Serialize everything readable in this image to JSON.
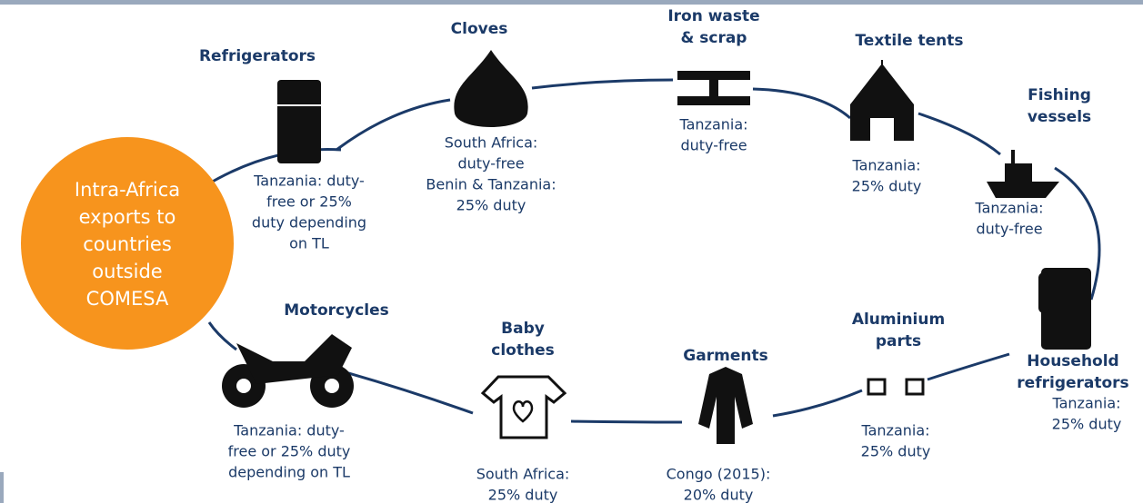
{
  "center": [
    "Intra-Africa",
    "exports to",
    "countries",
    "outside",
    "COMESA"
  ],
  "nodes": [
    {
      "title": [
        "Refrigerators"
      ],
      "note": [
        "Tanzania: duty-",
        "free or 25%",
        "duty depending",
        "on TL"
      ]
    },
    {
      "title": [
        "Cloves"
      ],
      "note": [
        "South Africa:",
        "duty-free",
        "Benin & Tanzania:",
        "25% duty"
      ]
    },
    {
      "title": [
        "Iron waste",
        "& scrap"
      ],
      "note": [
        "Tanzania:",
        "duty-free"
      ]
    },
    {
      "title": [
        "Textile tents"
      ],
      "note": [
        "Tanzania:",
        "25% duty"
      ]
    },
    {
      "title": [
        "Fishing",
        "vessels"
      ],
      "note": [
        "Tanzania:",
        "duty-free"
      ]
    },
    {
      "title": [
        "Household",
        "refrigerators"
      ],
      "note": [
        "Tanzania:",
        "25% duty"
      ]
    },
    {
      "title": [
        "Aluminium",
        "parts"
      ],
      "note": [
        "Tanzania:",
        "25% duty"
      ]
    },
    {
      "title": [
        "Garments"
      ],
      "note": [
        "Congo (2015):",
        "20% duty"
      ]
    },
    {
      "title": [
        "Baby",
        "clothes"
      ],
      "note": [
        "South Africa:",
        "25% duty"
      ]
    },
    {
      "title": [
        "Motorcycles"
      ],
      "note": [
        "Tanzania: duty-",
        "free or 25% duty",
        "depending on TL"
      ]
    }
  ]
}
